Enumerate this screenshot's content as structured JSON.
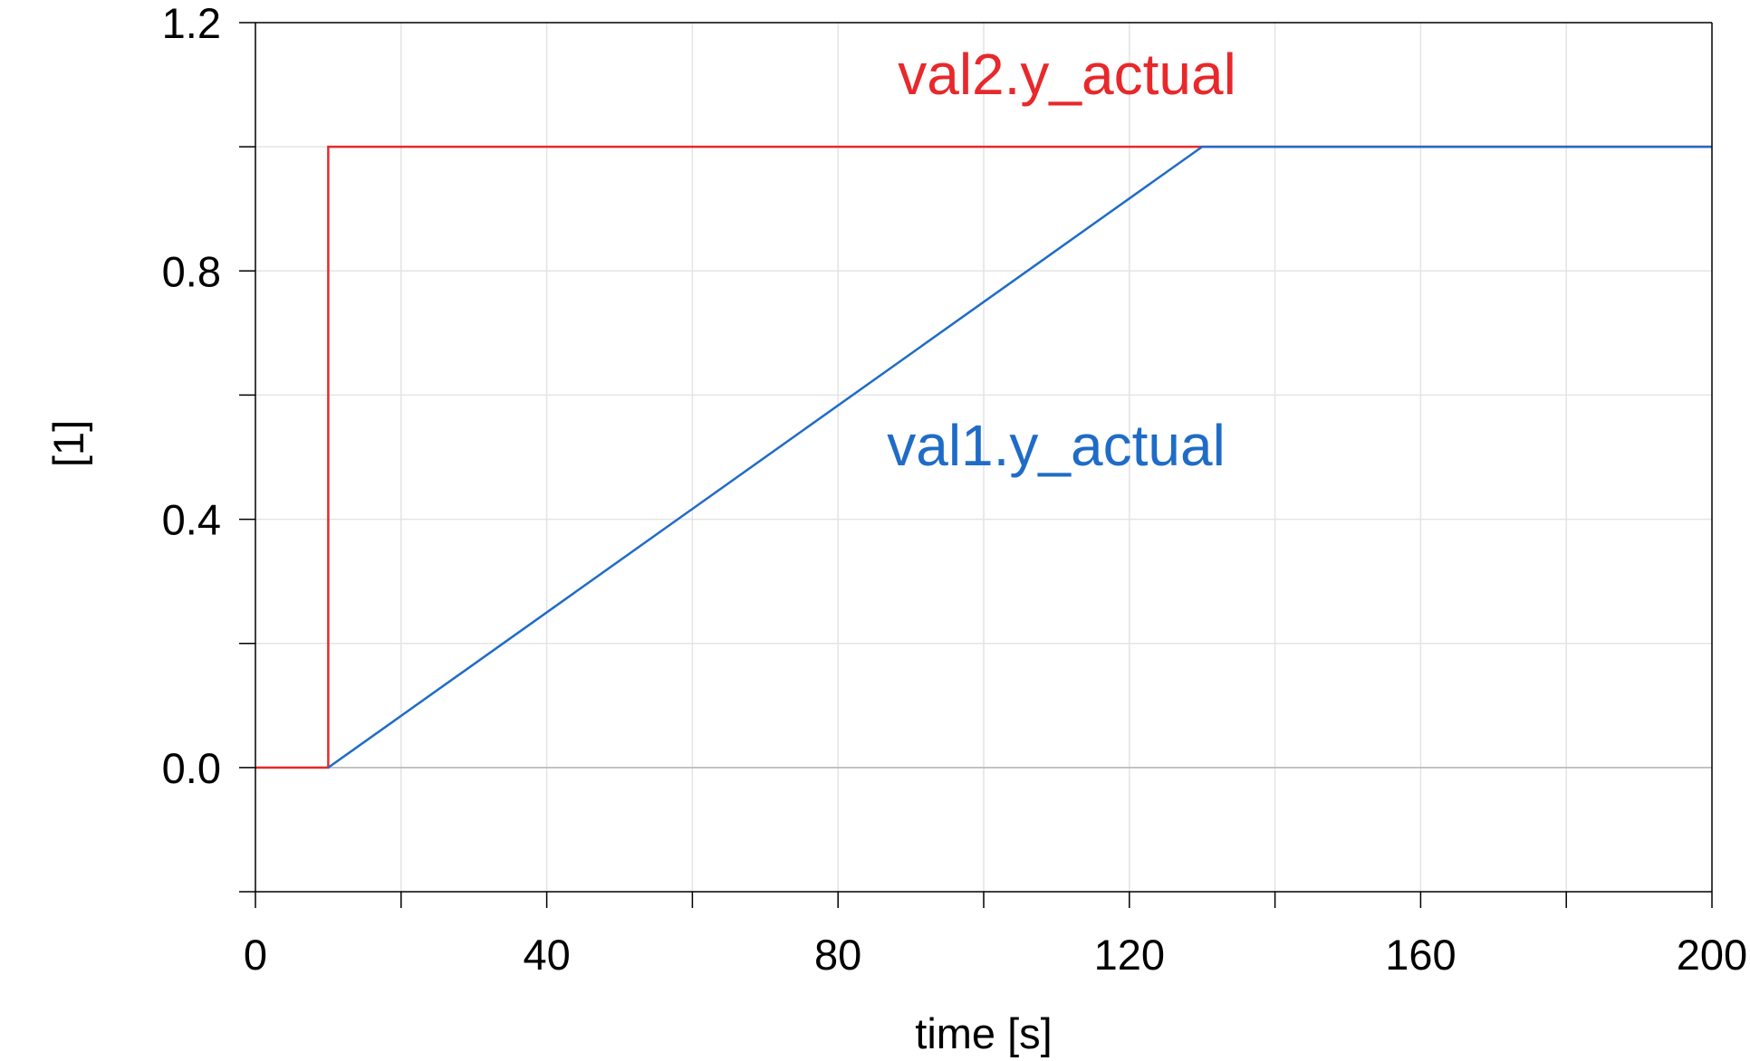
{
  "chart_data": {
    "type": "line",
    "title": "",
    "xlabel": "time [s]",
    "ylabel": "[1]",
    "xlim": [
      0,
      200
    ],
    "ylim": [
      -0.2,
      1.2
    ],
    "x_ticks": [
      0,
      40,
      80,
      120,
      160,
      200
    ],
    "x_minor_ticks": [
      20,
      60,
      100,
      140,
      180
    ],
    "x_tick_labels": [
      "0",
      "40",
      "80",
      "120",
      "160",
      "200"
    ],
    "y_ticks": [
      0.0,
      0.4,
      0.8,
      1.2
    ],
    "y_minor_ticks": [
      -0.2,
      0.2,
      0.6,
      1.0
    ],
    "y_tick_labels": [
      "0.0",
      "0.4",
      "0.8",
      "1.2"
    ],
    "grid": true,
    "series": [
      {
        "name": "val2.y_actual",
        "color": "#e8282b",
        "x": [
          0,
          10,
          10,
          200
        ],
        "y": [
          0,
          0,
          1,
          1
        ]
      },
      {
        "name": "val1.y_actual",
        "color": "#1f6cc7",
        "x": [
          10,
          130,
          200
        ],
        "y": [
          0,
          1,
          1
        ]
      }
    ]
  }
}
